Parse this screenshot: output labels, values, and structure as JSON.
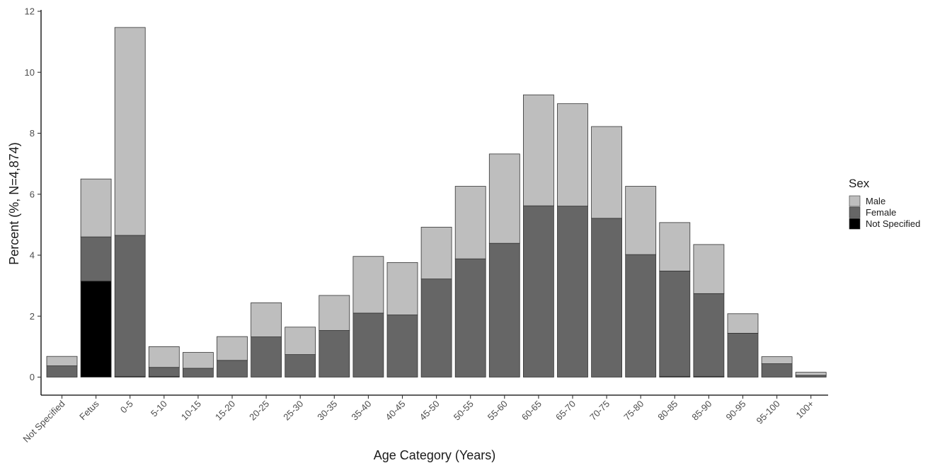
{
  "chart_data": {
    "type": "bar",
    "stacked": true,
    "title": "",
    "xlabel": "Age Category (Years)",
    "ylabel": "Percent (%, N=4,874)",
    "ylim": [
      0,
      12
    ],
    "yticks": [
      0,
      2,
      4,
      6,
      8,
      10,
      12
    ],
    "grid": false,
    "categories": [
      "Not Specified",
      "Fetus",
      "0-5",
      "5-10",
      "10-15",
      "15-20",
      "20-25",
      "25-30",
      "30-35",
      "35-40",
      "40-45",
      "45-50",
      "50-55",
      "55-60",
      "60-65",
      "65-70",
      "70-75",
      "75-80",
      "80-85",
      "85-90",
      "90-95",
      "95-100",
      "100+"
    ],
    "series": [
      {
        "name": "Not Specified",
        "color": "#000000",
        "values": [
          0,
          3.15,
          0.02,
          0.02,
          0,
          0,
          0,
          0,
          0,
          0,
          0,
          0,
          0,
          0,
          0,
          0,
          0,
          0,
          0.02,
          0.02,
          0,
          0,
          0
        ]
      },
      {
        "name": "Female",
        "color": "#666666",
        "values": [
          0.37,
          1.45,
          4.63,
          0.3,
          0.29,
          0.55,
          1.32,
          0.74,
          1.53,
          2.1,
          2.04,
          3.22,
          3.88,
          4.39,
          5.62,
          5.61,
          5.21,
          4.02,
          3.46,
          2.72,
          1.44,
          0.44,
          0.06
        ]
      },
      {
        "name": "Male",
        "color": "#bebebe",
        "values": [
          0.31,
          1.9,
          6.82,
          0.68,
          0.52,
          0.78,
          1.12,
          0.9,
          1.15,
          1.86,
          1.72,
          1.7,
          2.38,
          2.93,
          3.64,
          3.36,
          3.01,
          2.24,
          1.59,
          1.61,
          0.64,
          0.23,
          0.1
        ]
      }
    ],
    "legend": {
      "title": "Sex",
      "position": "right",
      "items": [
        {
          "label": "Male",
          "color": "#bebebe"
        },
        {
          "label": "Female",
          "color": "#666666"
        },
        {
          "label": "Not Specified",
          "color": "#000000"
        }
      ]
    }
  }
}
